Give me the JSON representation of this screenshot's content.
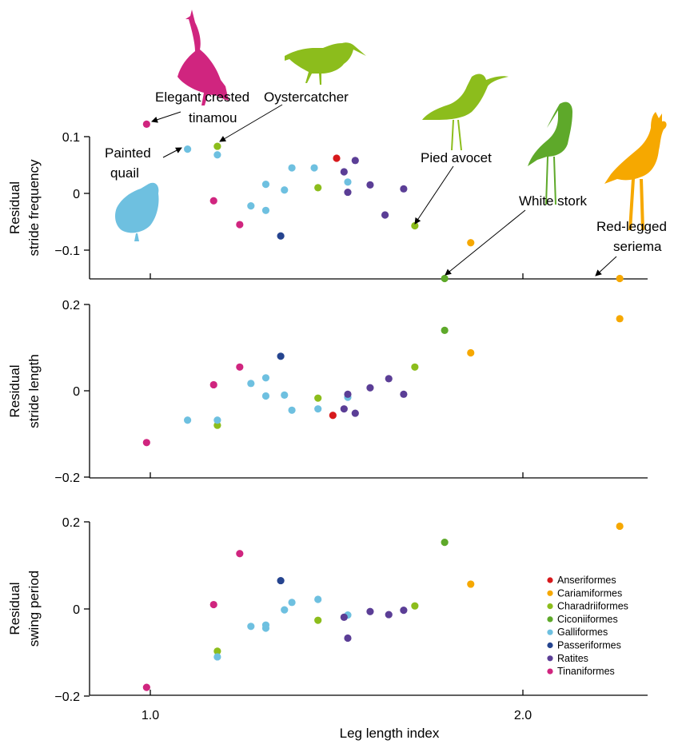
{
  "colors": {
    "Anseriformes": "#d7191c",
    "Cariamiformes": "#f6a800",
    "Charadriiformes": "#8cbd1c",
    "Ciconiiformes": "#5ea92a",
    "Galliformes": "#6ec0e0",
    "Passeriformes": "#25448f",
    "Ratites": "#5b3e96",
    "Tinaniformes": "#d0257f"
  },
  "legend": [
    "Anseriformes",
    "Cariamiformes",
    "Charadriiformes",
    "Ciconiiformes",
    "Galliformes",
    "Passeriformes",
    "Ratites",
    "Tinaniformes"
  ],
  "annotations": {
    "tinamou_1": "Elegant crested",
    "tinamou_2": "tinamou",
    "oystercatcher": "Oystercatcher",
    "quail_1": "Painted",
    "quail_2": "quail",
    "avocet": "Pied avocet",
    "stork": "White stork",
    "seriema_1": "Red-legged",
    "seriema_2": "seriema"
  },
  "silhouette_icons": [
    "tinamou-icon",
    "oystercatcher-icon",
    "quail-icon",
    "avocet-icon",
    "stork-icon",
    "seriema-icon"
  ],
  "chart_data": [
    {
      "type": "scatter",
      "title": "",
      "xlabel": "",
      "ylabel": "Residual stride frequency",
      "ylabel_lines": [
        "Residual",
        "stride frequency"
      ],
      "xlim": [
        0.85,
        2.34
      ],
      "ylim": [
        -0.15,
        0.16
      ],
      "yticks": [
        0.1,
        0,
        -0.1
      ],
      "ytick_labels": [
        "0.1",
        "0",
        "−0.1"
      ],
      "xticks": [
        1.0,
        2.0
      ],
      "xtick_labels": [
        "",
        ""
      ],
      "series": [
        {
          "name": "Anseriformes",
          "points": [
            [
              1.5,
              0.062
            ]
          ]
        },
        {
          "name": "Cariamiformes",
          "points": [
            [
              1.86,
              -0.087
            ],
            [
              2.26,
              -0.15
            ]
          ]
        },
        {
          "name": "Charadriiformes",
          "points": [
            [
              1.18,
              0.083
            ],
            [
              1.45,
              0.01
            ],
            [
              1.71,
              -0.057
            ]
          ]
        },
        {
          "name": "Ciconiiformes",
          "points": [
            [
              1.79,
              -0.15
            ]
          ]
        },
        {
          "name": "Galliformes",
          "points": [
            [
              1.1,
              0.078
            ],
            [
              1.18,
              0.068
            ],
            [
              1.27,
              -0.022
            ],
            [
              1.31,
              -0.03
            ],
            [
              1.31,
              0.016
            ],
            [
              1.36,
              0.006
            ],
            [
              1.38,
              0.045
            ],
            [
              1.44,
              0.045
            ],
            [
              1.53,
              0.02
            ]
          ]
        },
        {
          "name": "Passeriformes",
          "points": [
            [
              1.35,
              -0.075
            ]
          ]
        },
        {
          "name": "Ratites",
          "points": [
            [
              1.52,
              0.038
            ],
            [
              1.55,
              0.058
            ],
            [
              1.53,
              0.002
            ],
            [
              1.59,
              0.015
            ],
            [
              1.63,
              -0.038
            ],
            [
              1.68,
              0.008
            ]
          ]
        },
        {
          "name": "Tinaniformes",
          "points": [
            [
              0.99,
              0.122
            ],
            [
              1.17,
              -0.013
            ],
            [
              1.24,
              -0.055
            ]
          ]
        }
      ]
    },
    {
      "type": "scatter",
      "title": "",
      "xlabel": "",
      "ylabel": "Residual stride length",
      "ylabel_lines": [
        "Residual",
        "stride length"
      ],
      "xlim": [
        0.85,
        2.34
      ],
      "ylim": [
        -0.2,
        0.23
      ],
      "yticks": [
        0.2,
        0,
        -0.2
      ],
      "ytick_labels": [
        "0.2",
        "0",
        "−0.2"
      ],
      "xticks": [
        1.0,
        2.0
      ],
      "xtick_labels": [
        "",
        ""
      ],
      "series": [
        {
          "name": "Anseriformes",
          "points": [
            [
              1.49,
              -0.057
            ]
          ]
        },
        {
          "name": "Cariamiformes",
          "points": [
            [
              1.86,
              0.088
            ],
            [
              2.26,
              0.167
            ]
          ]
        },
        {
          "name": "Charadriiformes",
          "points": [
            [
              1.18,
              -0.08
            ],
            [
              1.45,
              -0.017
            ],
            [
              1.71,
              0.055
            ]
          ]
        },
        {
          "name": "Ciconiiformes",
          "points": [
            [
              1.79,
              0.14
            ]
          ]
        },
        {
          "name": "Galliformes",
          "points": [
            [
              1.1,
              -0.068
            ],
            [
              1.18,
              -0.068
            ],
            [
              1.27,
              0.017
            ],
            [
              1.31,
              0.03
            ],
            [
              1.31,
              -0.012
            ],
            [
              1.36,
              -0.01
            ],
            [
              1.38,
              -0.045
            ],
            [
              1.45,
              -0.042
            ],
            [
              1.53,
              -0.015
            ]
          ]
        },
        {
          "name": "Passeriformes",
          "points": [
            [
              1.35,
              0.08
            ]
          ]
        },
        {
          "name": "Ratites",
          "points": [
            [
              1.52,
              -0.042
            ],
            [
              1.53,
              -0.008
            ],
            [
              1.55,
              -0.052
            ],
            [
              1.59,
              0.007
            ],
            [
              1.64,
              0.028
            ],
            [
              1.68,
              -0.008
            ]
          ]
        },
        {
          "name": "Tinaniformes",
          "points": [
            [
              0.99,
              -0.12
            ],
            [
              1.17,
              0.014
            ],
            [
              1.24,
              0.055
            ]
          ]
        }
      ]
    },
    {
      "type": "scatter",
      "title": "",
      "xlabel": "Leg length index",
      "ylabel": "Residual swing period",
      "ylabel_lines": [
        "Residual",
        "swing period"
      ],
      "xlim": [
        0.85,
        2.34
      ],
      "ylim": [
        -0.2,
        0.23
      ],
      "yticks": [
        0.2,
        0,
        -0.2
      ],
      "ytick_labels": [
        "0.2",
        "0",
        "−0.2"
      ],
      "xticks": [
        1.0,
        2.0
      ],
      "xtick_labels": [
        "1.0",
        "2.0"
      ],
      "legend_position": "lower-right",
      "series": [
        {
          "name": "Anseriformes",
          "points": []
        },
        {
          "name": "Cariamiformes",
          "points": [
            [
              1.86,
              0.057
            ],
            [
              2.26,
              0.19
            ]
          ]
        },
        {
          "name": "Charadriiformes",
          "points": [
            [
              1.18,
              -0.097
            ],
            [
              1.45,
              -0.026
            ],
            [
              1.71,
              0.007
            ]
          ]
        },
        {
          "name": "Ciconiiformes",
          "points": [
            [
              1.79,
              0.153
            ]
          ]
        },
        {
          "name": "Galliformes",
          "points": [
            [
              1.18,
              -0.11
            ],
            [
              1.27,
              -0.04
            ],
            [
              1.31,
              -0.037
            ],
            [
              1.31,
              -0.044
            ],
            [
              1.36,
              -0.002
            ],
            [
              1.38,
              0.015
            ],
            [
              1.45,
              0.022
            ],
            [
              1.53,
              -0.014
            ]
          ]
        },
        {
          "name": "Passeriformes",
          "points": [
            [
              1.35,
              0.065
            ]
          ]
        },
        {
          "name": "Ratites",
          "points": [
            [
              1.52,
              -0.019
            ],
            [
              1.53,
              -0.067
            ],
            [
              1.59,
              -0.006
            ],
            [
              1.64,
              -0.013
            ],
            [
              1.68,
              -0.003
            ]
          ]
        },
        {
          "name": "Tinaniformes",
          "points": [
            [
              0.99,
              -0.18
            ],
            [
              1.17,
              0.01
            ],
            [
              1.24,
              0.127
            ]
          ]
        }
      ]
    }
  ]
}
